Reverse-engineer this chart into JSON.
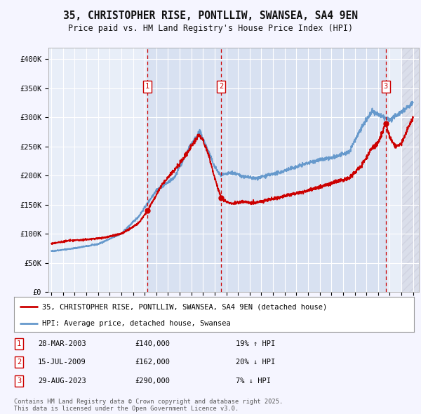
{
  "title": "35, CHRISTOPHER RISE, PONTLLIW, SWANSEA, SA4 9EN",
  "subtitle": "Price paid vs. HM Land Registry's House Price Index (HPI)",
  "background_color": "#f5f5ff",
  "plot_background": "#e8eef8",
  "line_color_hpi": "#6699cc",
  "line_color_price": "#cc0000",
  "transactions": [
    {
      "num": 1,
      "date_x": 2003.24,
      "price": 140000,
      "hpi_change": "19% ↑ HPI",
      "label": "28-MAR-2003",
      "price_str": "£140,000"
    },
    {
      "num": 2,
      "date_x": 2009.54,
      "price": 162000,
      "hpi_change": "20% ↓ HPI",
      "label": "15-JUL-2009",
      "price_str": "£162,000"
    },
    {
      "num": 3,
      "date_x": 2023.66,
      "price": 290000,
      "hpi_change": "7% ↓ HPI",
      "label": "29-AUG-2023",
      "price_str": "£290,000"
    }
  ],
  "legend_label_price": "35, CHRISTOPHER RISE, PONTLLIW, SWANSEA, SA4 9EN (detached house)",
  "legend_label_hpi": "HPI: Average price, detached house, Swansea",
  "footer": "Contains HM Land Registry data © Crown copyright and database right 2025.\nThis data is licensed under the Open Government Licence v3.0.",
  "ylim": [
    0,
    420000
  ],
  "yticks": [
    0,
    50000,
    100000,
    150000,
    200000,
    250000,
    300000,
    350000,
    400000
  ],
  "ytick_labels": [
    "£0",
    "£50K",
    "£100K",
    "£150K",
    "£200K",
    "£250K",
    "£300K",
    "£350K",
    "£400K"
  ],
  "xlim_left": 1994.75,
  "xlim_right": 2026.5
}
